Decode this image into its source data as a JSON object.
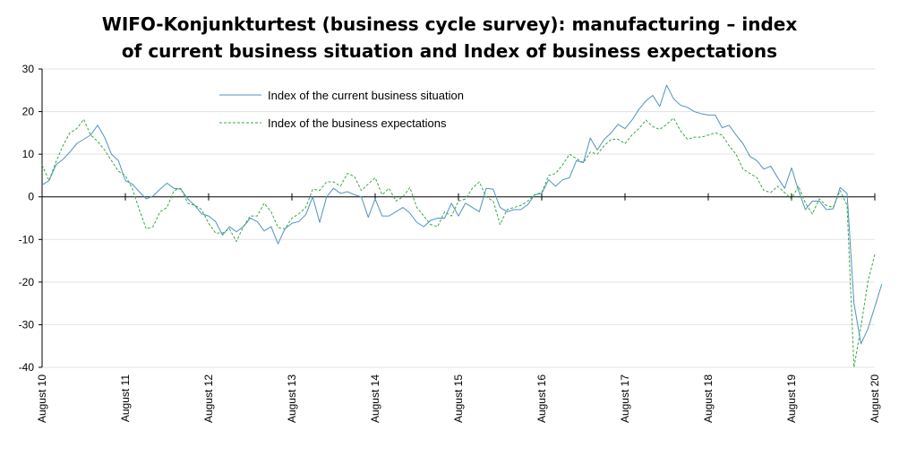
{
  "chart_data": {
    "type": "line",
    "title_lines": [
      "WIFO-Konjunkturtest (business cycle survey): manufacturing – index",
      "of current business situation and Index of business expectations"
    ],
    "xlabel": "",
    "ylabel": "",
    "ylim": [
      -40,
      30
    ],
    "yticks": [
      30,
      20,
      10,
      0,
      -10,
      -20,
      -30,
      -40
    ],
    "ytick_labels": [
      "30",
      "20",
      "10",
      "0",
      "-10",
      "-20",
      "-30",
      "-40"
    ],
    "x_range_months": [
      0,
      120
    ],
    "xtick_labels": [
      "August 10",
      "August 11",
      "August 12",
      "August 13",
      "August 14",
      "August 15",
      "August 16",
      "August 17",
      "August 18",
      "August 19",
      "August 20"
    ],
    "xtick_months": [
      0,
      12,
      24,
      36,
      48,
      60,
      72,
      84,
      96,
      108,
      120
    ],
    "grid": "horizontal",
    "legend_position": "top-left inside",
    "series": [
      {
        "name": "Index of the current business situation",
        "color": "#4f93c0",
        "style": "solid",
        "values": [
          2.8,
          3.8,
          7.5,
          8.8,
          10.5,
          12.5,
          13.5,
          14.5,
          16.8,
          14,
          10,
          8.5,
          3.8,
          3,
          1.2,
          -0.5,
          0.2,
          1.8,
          3.2,
          2,
          1.8,
          -0.5,
          -2,
          -4,
          -4.5,
          -5.8,
          -9,
          -7,
          -8.2,
          -7,
          -5,
          -5.8,
          -8,
          -7,
          -11,
          -7.5,
          -6.2,
          -5.8,
          -4.2,
          0,
          -6,
          0,
          2,
          0.8,
          1.2,
          0.5,
          0,
          -4.8,
          -0.5,
          -4.5,
          -4.5,
          -3.5,
          -2.5,
          -3.8,
          -6,
          -7,
          -5.5,
          -5,
          -5,
          -1.5,
          -4.5,
          -1.5,
          -2.5,
          -3.5,
          2,
          1.8,
          -2.5,
          -3.5,
          -3,
          -3,
          -1.8,
          0.5,
          0.8,
          4,
          2.5,
          4,
          4.5,
          8.5,
          8,
          13.8,
          11,
          13.5,
          15,
          17,
          16,
          18,
          20.5,
          22.5,
          23.8,
          21.2,
          26.2,
          23,
          21.5,
          21,
          20,
          19.5,
          19.2,
          19.2,
          16.2,
          16.8,
          14.5,
          12.5,
          9.5,
          8.5,
          6.5,
          7.2,
          4.5,
          2,
          6.8,
          1.5,
          -3,
          -1,
          -1,
          -3,
          -2.8,
          2.2,
          0.8,
          -25,
          -34.5,
          -31,
          -25.8,
          -20.5
        ]
      },
      {
        "name": "Index of the business expectations",
        "color": "#39a844",
        "style": "dashed",
        "values": [
          7.5,
          3.8,
          8.2,
          12,
          15,
          16,
          18.2,
          14.5,
          13,
          11,
          8.5,
          6,
          5,
          2,
          -3,
          -7.5,
          -7,
          -3.5,
          -2.5,
          1.5,
          2,
          -1.5,
          -2,
          -3,
          -6.2,
          -8.5,
          -8.5,
          -7.5,
          -10.5,
          -7,
          -4.5,
          -4.5,
          -1.5,
          -3.5,
          -7.2,
          -7.5,
          -5,
          -4,
          -2.5,
          1.8,
          1.5,
          3.5,
          3.5,
          2.5,
          5.5,
          4.8,
          1.5,
          3,
          4.5,
          0.5,
          2,
          -1,
          0,
          2.2,
          -2.5,
          -4.5,
          -6.5,
          -7,
          -3.5,
          -4.5,
          -1,
          -0.5,
          2,
          3.5,
          0,
          -1,
          -6.5,
          -3,
          -2.5,
          -2,
          -1,
          0.5,
          1,
          5,
          5.5,
          7.5,
          10,
          9,
          8,
          10.5,
          10,
          12,
          13.5,
          13.5,
          12.5,
          14.5,
          16,
          18,
          16.5,
          15.8,
          17,
          18.5,
          15.5,
          13.5,
          14,
          14,
          14.5,
          15,
          14.5,
          12,
          10,
          6.5,
          5.5,
          4.5,
          1.5,
          1,
          2.5,
          1,
          -0.5,
          2.5,
          -1.5,
          -4,
          -0.5,
          -2,
          -2.5,
          1.5,
          -2,
          -40,
          -30.5,
          -20,
          -13.5
        ]
      }
    ]
  }
}
